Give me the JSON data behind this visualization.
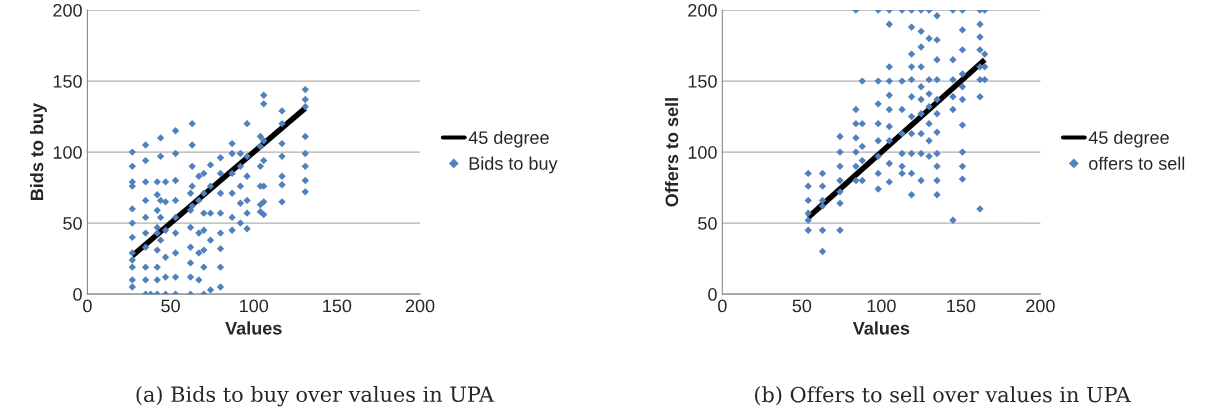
{
  "chart_data": [
    {
      "type": "scatter",
      "xlabel": "Values",
      "ylabel": "Bids to buy",
      "xlim": [
        0,
        200
      ],
      "ylim": [
        0,
        200
      ],
      "xticks": [
        0,
        50,
        100,
        150,
        200
      ],
      "yticks": [
        0,
        50,
        100,
        150,
        200
      ],
      "grid": "y",
      "legend": "right",
      "annotations": [
        "(a) Bids to buy over values in UPA"
      ],
      "series": [
        {
          "name": "45 degree",
          "type": "line",
          "marker": "none",
          "color": "#000000",
          "x": [
            27,
            131
          ],
          "values": [
            27,
            131
          ]
        },
        {
          "name": "Bids to buy",
          "marker": "diamond",
          "color": "#4f81bd",
          "x": [
            27,
            27,
            27,
            27,
            27,
            27,
            27,
            27,
            27,
            27,
            27,
            27,
            35,
            35,
            35,
            35,
            35,
            35,
            35,
            35,
            35,
            35,
            38,
            42,
            42,
            42,
            42,
            42,
            42,
            42,
            42,
            42,
            44,
            44,
            44,
            44,
            44,
            47,
            47,
            47,
            47,
            47,
            47,
            53,
            53,
            53,
            53,
            53,
            53,
            53,
            53,
            53,
            62,
            62,
            62,
            62,
            62,
            62,
            62,
            63,
            63,
            63,
            63,
            63,
            67,
            67,
            67,
            67,
            67,
            70,
            70,
            70,
            70,
            70,
            70,
            70,
            74,
            74,
            74,
            74,
            74,
            80,
            80,
            80,
            80,
            80,
            80,
            80,
            80,
            87,
            87,
            87,
            87,
            87,
            87,
            92,
            92,
            92,
            92,
            92,
            96,
            96,
            96,
            96,
            96,
            96,
            104,
            104,
            104,
            104,
            104,
            104,
            106,
            106,
            106,
            106,
            106,
            106,
            106,
            117,
            117,
            117,
            117,
            117,
            117,
            117,
            131,
            131,
            131,
            131,
            131,
            131,
            131,
            131
          ],
          "values": [
            100,
            90,
            79,
            76,
            60,
            50,
            40,
            29,
            24,
            19,
            10,
            5,
            105,
            94,
            79,
            66,
            54,
            43,
            33,
            19,
            10,
            0,
            0,
            79,
            70,
            59,
            47,
            43,
            31,
            19,
            10,
            0,
            110,
            97,
            66,
            54,
            38,
            79,
            65,
            45,
            26,
            12,
            0,
            115,
            99,
            80,
            66,
            54,
            43,
            29,
            12,
            0,
            71,
            59,
            47,
            33,
            22,
            12,
            0,
            120,
            105,
            90,
            76,
            62,
            83,
            66,
            43,
            29,
            10,
            85,
            71,
            57,
            45,
            31,
            19,
            0,
            91,
            76,
            57,
            38,
            3,
            96,
            85,
            71,
            57,
            43,
            32,
            19,
            5,
            106,
            99,
            85,
            71,
            54,
            45,
            99,
            90,
            76,
            64,
            50,
            120,
            97,
            83,
            66,
            57,
            46,
            111,
            104,
            90,
            76,
            63,
            58,
            140,
            134,
            108,
            94,
            76,
            65,
            56,
            129,
            120,
            106,
            97,
            83,
            77,
            65,
            144,
            137,
            132,
            111,
            99,
            90,
            80,
            72
          ]
        }
      ]
    },
    {
      "type": "scatter",
      "xlabel": "Values",
      "ylabel": "Offers to sell",
      "xlim": [
        0,
        200
      ],
      "ylim": [
        0,
        200
      ],
      "xticks": [
        0,
        50,
        100,
        150,
        200
      ],
      "yticks": [
        0,
        50,
        100,
        150,
        200
      ],
      "grid": "y",
      "legend": "right",
      "annotations": [
        "(b) Offers to sell over values in UPA"
      ],
      "series": [
        {
          "name": "45 degree",
          "type": "line",
          "marker": "none",
          "color": "#000000",
          "x": [
            54,
            165
          ],
          "values": [
            54,
            165
          ]
        },
        {
          "name": "offers to sell",
          "marker": "diamond",
          "color": "#4f81bd",
          "x": [
            54,
            54,
            54,
            54,
            54,
            54,
            63,
            63,
            63,
            63,
            63,
            63,
            74,
            74,
            74,
            74,
            74,
            74,
            74,
            84,
            84,
            84,
            84,
            84,
            84,
            84,
            88,
            88,
            88,
            88,
            88,
            98,
            98,
            98,
            98,
            98,
            98,
            98,
            98,
            105,
            105,
            105,
            105,
            105,
            105,
            105,
            105,
            105,
            105,
            113,
            113,
            113,
            113,
            113,
            113,
            113,
            119,
            119,
            119,
            119,
            119,
            119,
            119,
            119,
            119,
            119,
            119,
            125,
            125,
            125,
            125,
            125,
            125,
            125,
            125,
            125,
            125,
            130,
            130,
            130,
            130,
            130,
            130,
            130,
            130,
            135,
            135,
            135,
            135,
            135,
            135,
            135,
            135,
            135,
            135,
            135,
            145,
            145,
            145,
            145,
            145,
            145,
            151,
            151,
            151,
            151,
            151,
            151,
            151,
            151,
            151,
            151,
            162,
            162,
            162,
            162,
            162,
            162,
            162,
            162,
            165,
            165,
            165,
            165
          ],
          "values": [
            85,
            76,
            66,
            57,
            52,
            45,
            85,
            76,
            66,
            62,
            45,
            30,
            111,
            100,
            90,
            80,
            72,
            64,
            45,
            200,
            130,
            120,
            110,
            100,
            90,
            80,
            150,
            120,
            104,
            94,
            80,
            200,
            150,
            134,
            120,
            108,
            97,
            85,
            74,
            200,
            190,
            160,
            150,
            140,
            130,
            118,
            108,
            92,
            79,
            200,
            150,
            130,
            113,
            99,
            90,
            85,
            200,
            188,
            169,
            160,
            151,
            139,
            125,
            113,
            99,
            85,
            70,
            200,
            185,
            174,
            160,
            146,
            137,
            127,
            113,
            99,
            80,
            200,
            180,
            151,
            141,
            132,
            120,
            108,
            97,
            196,
            179,
            165,
            151,
            137,
            127,
            114,
            99,
            90,
            80,
            70,
            200,
            165,
            151,
            139,
            130,
            52,
            200,
            186,
            172,
            155,
            146,
            137,
            119,
            100,
            90,
            81,
            200,
            190,
            181,
            172,
            160,
            151,
            139,
            60,
            200,
            169,
            160,
            151
          ]
        }
      ]
    }
  ]
}
